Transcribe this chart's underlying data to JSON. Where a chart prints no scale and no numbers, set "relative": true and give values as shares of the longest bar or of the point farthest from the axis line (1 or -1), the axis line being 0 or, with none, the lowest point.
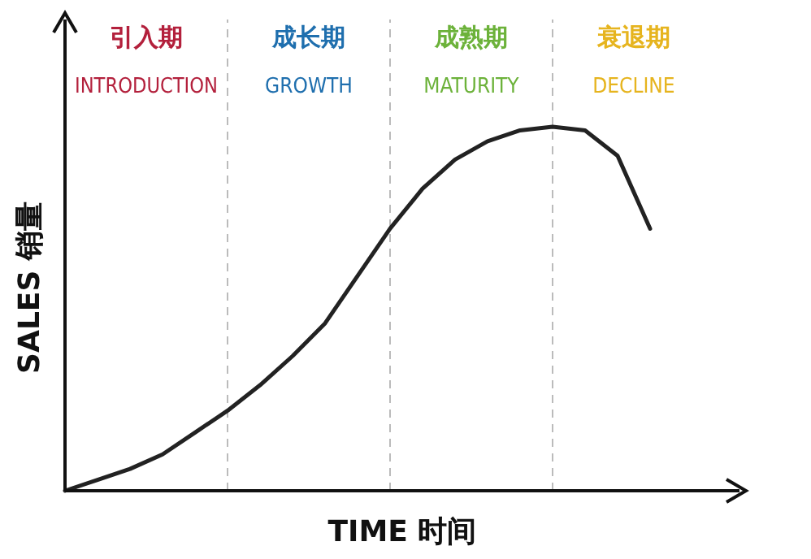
{
  "chart_data": {
    "type": "line",
    "relative": true,
    "xlabel": "TIME 时间",
    "ylabel": "SALES 销量",
    "marker": "none",
    "grid": "x",
    "line_style": "solid",
    "categories": [
      null,
      null,
      null,
      null,
      null,
      null,
      null,
      null,
      null,
      null,
      null,
      null,
      null,
      null,
      null,
      null,
      null,
      null,
      null
    ],
    "series": [
      {
        "color": "#222222",
        "values": [
          0,
          0.03,
          0.06,
          0.1,
          0.16,
          0.22,
          0.29,
          0.37,
          0.46,
          0.59,
          0.72,
          0.83,
          0.91,
          0.96,
          0.99,
          1,
          0.99,
          0.92,
          0.72
        ]
      }
    ],
    "annotations": [
      "引入期",
      "INTRODUCTION",
      "成长期",
      "GROWTH",
      "成熟期",
      "MATURITY",
      "衰退期",
      "DECLINE"
    ]
  }
}
